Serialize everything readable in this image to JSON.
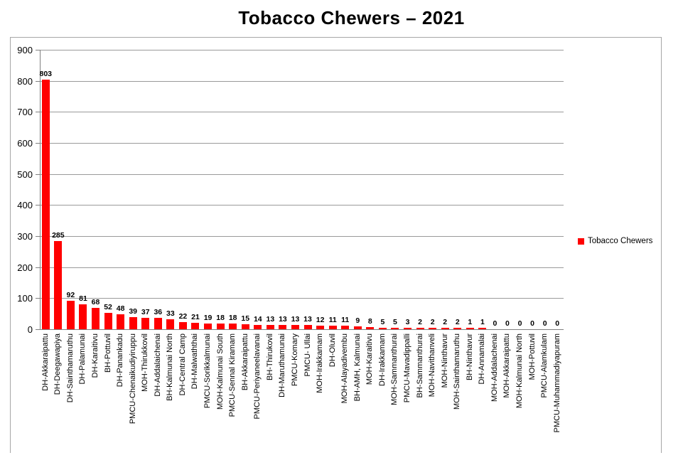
{
  "title": "Tobacco Chewers – 2021",
  "legend": {
    "label": "Tobacco Chewers"
  },
  "colors": {
    "bar": "#FF0000",
    "gridline": "#9A9A9A",
    "axis": "#808080",
    "frame_border": "#A6A6A6",
    "text": "#000000",
    "background": "#FFFFFF"
  },
  "chart_data": {
    "type": "bar",
    "title": "Tobacco Chewers – 2021",
    "xlabel": "",
    "ylabel": "",
    "ylim": [
      0,
      900
    ],
    "ytick_step": 100,
    "yticks": [
      0,
      100,
      200,
      300,
      400,
      500,
      600,
      700,
      800,
      900
    ],
    "grid": true,
    "legend": [
      "Tobacco Chewers"
    ],
    "legend_position": "right",
    "bar_color": "#FF0000",
    "data_labels": true,
    "categories": [
      "DH-Akkaraipattu",
      "DH-Deegawapiya",
      "DH-Sainthamaruthu",
      "DH-Palamunai",
      "DH-Karaitivu",
      "BH-Pottuvil",
      "DH-Panankadu",
      "PMCU-Chenaikudiyiruppu",
      "MOH-Thirukkovil",
      "DH-Addalaichenai",
      "BH-Kalmunai North",
      "DH-Central Camp",
      "DH-Malwaththai",
      "PMCU-Sorikkalmunai",
      "MOH-Kalmunai South",
      "PMCU-Sennal Kiramam",
      "BH-Akkaraipattu",
      "PMCU-Periyaneelavanai",
      "BH-Thirukovil",
      "DH-Maruthamunai",
      "PMCU-Komary",
      "PMCU- Ullai",
      "MOH-Irakkamam",
      "DH-Oluvil",
      "MOH-Alayadivembu",
      "BH-AMH, Kalmunai",
      "MOH-Karaitivu",
      "DH-Irakkamam",
      "MOH-Sammanthurai",
      "PMCU-Mavadippalli",
      "BH-Sammanthurai",
      "MOH-Navithanveli",
      "MOH-Ninthavur",
      "MOH-Sainthamaruthu",
      "BH-Ninthavur",
      "DH-Annamalai",
      "MOH-Addalachenai",
      "MOH-Akkaraipattu",
      "MOH-Kalmunai North",
      "MOH-Pottuvil",
      "PMCU-Alamkulam",
      "PMCU-Muhammadiyapuram"
    ],
    "values": [
      803,
      285,
      92,
      81,
      68,
      52,
      48,
      39,
      37,
      36,
      33,
      22,
      21,
      19,
      18,
      18,
      15,
      14,
      13,
      13,
      13,
      13,
      12,
      11,
      11,
      9,
      8,
      5,
      5,
      3,
      2,
      2,
      2,
      2,
      1,
      1,
      0,
      0,
      0,
      0,
      0,
      0
    ]
  }
}
